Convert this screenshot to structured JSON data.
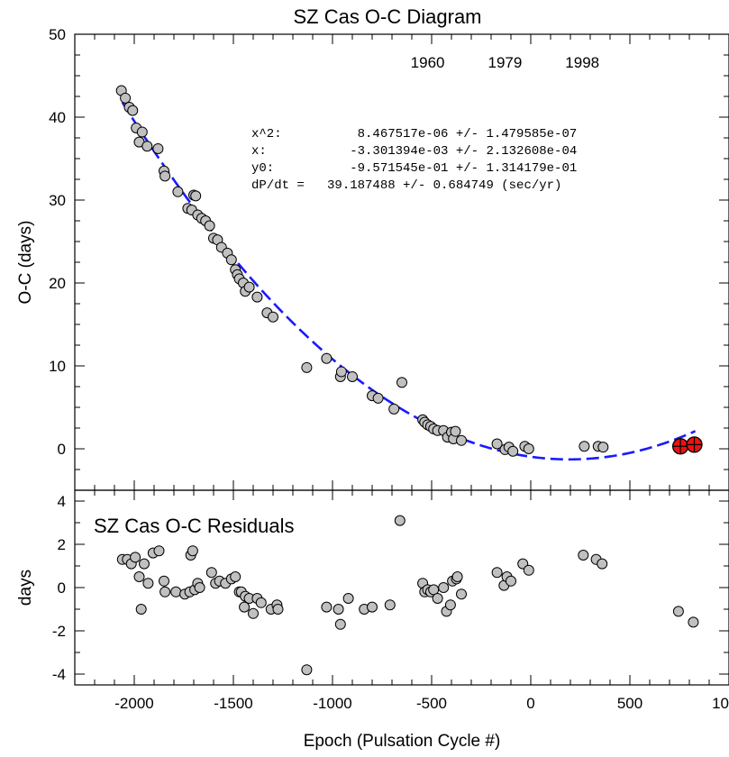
{
  "chart_data": [
    {
      "type": "scatter",
      "title": "SZ Cas O-C Diagram",
      "xlabel": "",
      "ylabel": "O-C (days)",
      "xlim": [
        -2300,
        1000
      ],
      "ylim": [
        -5,
        50
      ],
      "yticks": [
        0,
        10,
        20,
        30,
        40,
        50
      ],
      "top_axis_labels": [
        {
          "x": -520,
          "label": "1960"
        },
        {
          "x": -130,
          "label": "1979"
        },
        {
          "x": 260,
          "label": "1998"
        }
      ],
      "fit_text": [
        "x^2:          8.467517e-06 +/- 1.479585e-07",
        "x:           -3.301394e-03 +/- 2.132608e-04",
        "y0:          -9.571545e-01 +/- 1.314179e-01",
        "dP/dt =   39.187488 +/- 0.684749 (sec/yr)"
      ],
      "fit": {
        "name": "quadratic fit",
        "a": 8.467517e-06,
        "b": -0.003301394,
        "c": -0.9571545,
        "x_range": [
          -2060,
          830
        ],
        "color": "#1a1aff",
        "dashed": true
      },
      "series": [
        {
          "name": "observations",
          "marker": "circle",
          "color": "#c0c0c0",
          "points": [
            [
              -2065,
              43.2
            ],
            [
              -2045,
              42.3
            ],
            [
              -2025,
              41.2
            ],
            [
              -2008,
              40.8
            ],
            [
              -1990,
              38.7
            ],
            [
              -1975,
              37.0
            ],
            [
              -1960,
              38.2
            ],
            [
              -1935,
              36.5
            ],
            [
              -1880,
              36.2
            ],
            [
              -1850,
              33.5
            ],
            [
              -1845,
              32.9
            ],
            [
              -1780,
              31.0
            ],
            [
              -1730,
              29.0
            ],
            [
              -1710,
              28.8
            ],
            [
              -1700,
              30.6
            ],
            [
              -1690,
              30.5
            ],
            [
              -1680,
              28.2
            ],
            [
              -1660,
              27.8
            ],
            [
              -1640,
              27.5
            ],
            [
              -1620,
              26.9
            ],
            [
              -1600,
              25.4
            ],
            [
              -1580,
              25.2
            ],
            [
              -1560,
              24.3
            ],
            [
              -1530,
              23.6
            ],
            [
              -1510,
              22.8
            ],
            [
              -1490,
              21.6
            ],
            [
              -1480,
              21.0
            ],
            [
              -1470,
              20.5
            ],
            [
              -1450,
              20.0
            ],
            [
              -1440,
              19.0
            ],
            [
              -1420,
              19.5
            ],
            [
              -1380,
              18.3
            ],
            [
              -1330,
              16.4
            ],
            [
              -1300,
              15.9
            ],
            [
              -1130,
              9.8
            ],
            [
              -1030,
              10.9
            ],
            [
              -960,
              8.7
            ],
            [
              -955,
              9.3
            ],
            [
              -900,
              8.7
            ],
            [
              -800,
              6.4
            ],
            [
              -770,
              6.1
            ],
            [
              -690,
              4.8
            ],
            [
              -650,
              8.0
            ],
            [
              -545,
              3.5
            ],
            [
              -535,
              3.2
            ],
            [
              -520,
              2.9
            ],
            [
              -505,
              2.7
            ],
            [
              -490,
              2.4
            ],
            [
              -470,
              2.2
            ],
            [
              -440,
              2.2
            ],
            [
              -420,
              1.4
            ],
            [
              -400,
              2.0
            ],
            [
              -390,
              1.2
            ],
            [
              -380,
              2.1
            ],
            [
              -350,
              1.0
            ],
            [
              -170,
              0.6
            ],
            [
              -130,
              -0.1
            ],
            [
              -110,
              0.2
            ],
            [
              -90,
              -0.3
            ],
            [
              -30,
              0.3
            ],
            [
              -10,
              0.0
            ],
            [
              270,
              0.3
            ],
            [
              340,
              0.3
            ],
            [
              365,
              0.2
            ]
          ]
        },
        {
          "name": "recent observations",
          "marker": "circle-cross",
          "color": "#ee1111",
          "points": [
            [
              755,
              0.3
            ],
            [
              825,
              0.5
            ]
          ]
        }
      ]
    },
    {
      "type": "scatter",
      "title": "SZ Cas O-C Residuals",
      "xlabel": "Epoch (Pulsation Cycle #)",
      "ylabel": "days",
      "xlim": [
        -2300,
        1000
      ],
      "ylim": [
        -4.5,
        4.5
      ],
      "xticks": [
        -2000,
        -1500,
        -1000,
        -500,
        0,
        500,
        1000
      ],
      "yticks": [
        -4,
        -2,
        0,
        2,
        4
      ],
      "series": [
        {
          "name": "residuals",
          "marker": "circle",
          "color": "#c0c0c0",
          "points": [
            [
              -2060,
              1.3
            ],
            [
              -2035,
              1.3
            ],
            [
              -2015,
              1.1
            ],
            [
              -1995,
              1.4
            ],
            [
              -1975,
              0.5
            ],
            [
              -1965,
              -1.0
            ],
            [
              -1950,
              1.1
            ],
            [
              -1930,
              0.2
            ],
            [
              -1905,
              1.6
            ],
            [
              -1875,
              1.7
            ],
            [
              -1850,
              0.3
            ],
            [
              -1845,
              -0.2
            ],
            [
              -1790,
              -0.2
            ],
            [
              -1745,
              -0.3
            ],
            [
              -1720,
              -0.2
            ],
            [
              -1715,
              1.5
            ],
            [
              -1705,
              1.7
            ],
            [
              -1695,
              -0.1
            ],
            [
              -1680,
              0.2
            ],
            [
              -1670,
              0.0
            ],
            [
              -1610,
              0.7
            ],
            [
              -1590,
              0.2
            ],
            [
              -1570,
              0.3
            ],
            [
              -1540,
              0.2
            ],
            [
              -1510,
              0.4
            ],
            [
              -1490,
              0.5
            ],
            [
              -1470,
              -0.2
            ],
            [
              -1460,
              -0.2
            ],
            [
              -1445,
              -0.9
            ],
            [
              -1440,
              -0.4
            ],
            [
              -1420,
              -0.5
            ],
            [
              -1400,
              -1.2
            ],
            [
              -1380,
              -0.5
            ],
            [
              -1360,
              -0.7
            ],
            [
              -1310,
              -1.0
            ],
            [
              -1280,
              -0.8
            ],
            [
              -1275,
              -1.0
            ],
            [
              -1130,
              -3.8
            ],
            [
              -1030,
              -0.9
            ],
            [
              -970,
              -1.0
            ],
            [
              -960,
              -1.7
            ],
            [
              -920,
              -0.5
            ],
            [
              -840,
              -1.0
            ],
            [
              -800,
              -0.9
            ],
            [
              -710,
              -0.8
            ],
            [
              -660,
              3.1
            ],
            [
              -545,
              0.2
            ],
            [
              -535,
              -0.2
            ],
            [
              -520,
              -0.1
            ],
            [
              -505,
              -0.2
            ],
            [
              -490,
              -0.1
            ],
            [
              -470,
              -0.5
            ],
            [
              -440,
              0.0
            ],
            [
              -425,
              -1.1
            ],
            [
              -405,
              -0.8
            ],
            [
              -395,
              0.3
            ],
            [
              -375,
              0.4
            ],
            [
              -370,
              0.5
            ],
            [
              -350,
              -0.3
            ],
            [
              -170,
              0.7
            ],
            [
              -135,
              0.1
            ],
            [
              -120,
              0.5
            ],
            [
              -100,
              0.3
            ],
            [
              -40,
              1.1
            ],
            [
              -10,
              0.8
            ],
            [
              265,
              1.5
            ],
            [
              330,
              1.3
            ],
            [
              360,
              1.1
            ],
            [
              745,
              -1.1
            ],
            [
              820,
              -1.6
            ]
          ]
        }
      ]
    }
  ]
}
